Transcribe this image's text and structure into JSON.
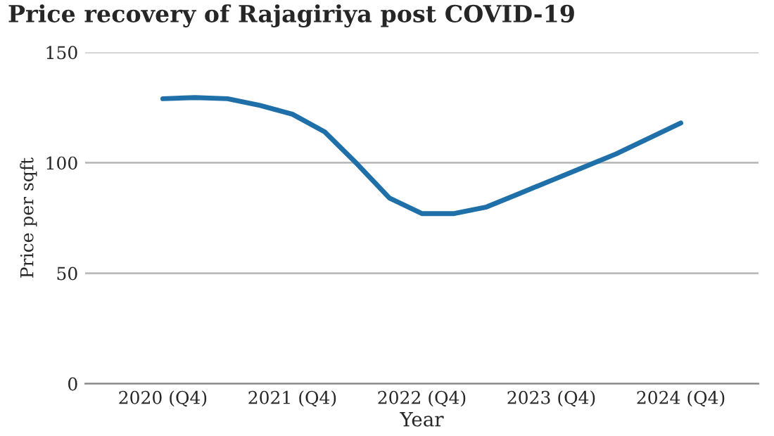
{
  "chart_data": {
    "type": "line",
    "title": "Price recovery of Rajagiriya post COVID-19",
    "xlabel": "Year",
    "ylabel": "Price per sqft",
    "categories": [
      "2020 (Q4)",
      null,
      null,
      null,
      "2021 (Q4)",
      null,
      null,
      null,
      "2022 (Q4)",
      null,
      null,
      null,
      "2023 (Q4)",
      null,
      null,
      null,
      "2024 (Q4)"
    ],
    "series": [
      {
        "color": "#1f6fa8",
        "values": [
          129,
          129.5,
          129,
          126,
          122,
          114,
          99.5,
          84,
          77,
          77,
          80,
          86,
          92,
          98,
          104,
          111,
          118
        ]
      }
    ],
    "ylim": [
      0,
      150
    ],
    "yticks": [
      0,
      50,
      100,
      150
    ],
    "grid": "y",
    "marker": "none",
    "line_style": "solid"
  }
}
